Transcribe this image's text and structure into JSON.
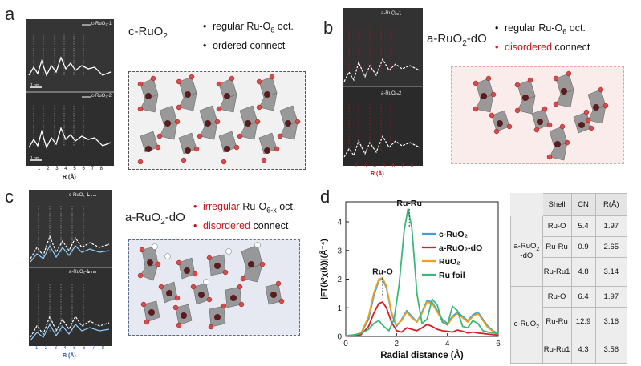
{
  "panels": {
    "a": {
      "label": "a",
      "title_main": "c-RuO",
      "title_sub": "2",
      "bullets": [
        {
          "text": "regular Ru-O",
          "sub": "6",
          "rest": " oct.",
          "highlight": false
        },
        {
          "text": "ordered connect",
          "sub": "",
          "rest": "",
          "highlight": false
        }
      ],
      "tem_legend_top": "c-RuO₂-1",
      "tem_legend_bottom": "c-RuO₂-2",
      "x_ticks": [
        "1",
        "2",
        "3",
        "4",
        "5",
        "6",
        "7",
        "8"
      ],
      "x_label": "R (Å)",
      "scale_text": "1 nm",
      "colors": {
        "tem_bg": "#2f2f2f",
        "trace": "#ffffff",
        "box_border": "#555555",
        "box_bg": "#f1f1f1"
      }
    },
    "b": {
      "label": "b",
      "title_main": "a-RuO",
      "title_sub": "2",
      "title_rest": "-dO",
      "bullets": [
        {
          "text": "regular Ru-O",
          "sub": "6",
          "rest": " oct.",
          "highlight": false
        },
        {
          "text": "disordered",
          "sub": "",
          "rest": " connect",
          "highlight": true
        }
      ],
      "tem_legend_top": "a-RuO₂-1",
      "tem_legend_bottom": "a-RuO₂-2",
      "x_ticks": [
        "1",
        "2",
        "3",
        "4",
        "5",
        "6",
        "7",
        "8"
      ],
      "x_label": "R (Å)",
      "colors": {
        "tem_bg": "#2a2a2a",
        "trace": "#ffffff",
        "markers": "#c0161c",
        "box_border": "#e5a3a7",
        "box_bg": "#fbecec"
      }
    },
    "c": {
      "label": "c",
      "title_main": "a-RuO",
      "title_sub": "2",
      "title_rest": "-dO",
      "bullets": [
        {
          "text": "irregular",
          "sub": "",
          "rest": " Ru-O",
          "rest_sub": "6-x",
          "rest2": " oct.",
          "highlight": true
        },
        {
          "text": "disordered",
          "sub": "",
          "rest": " connect",
          "highlight": true
        }
      ],
      "tem_legend_top": "c-RuO₂-1",
      "tem_legend_bottom": "a-RuO₂-1",
      "x_ticks": [
        "1",
        "2",
        "3",
        "4",
        "5",
        "6",
        "7",
        "8"
      ],
      "x_label": "R (Å)",
      "colors": {
        "tem_bg": "#2f2f2f",
        "trace": "#ffffff",
        "trace2": "#8fd0ff",
        "box_border": "#5a6a8a",
        "box_bg": "#e6e9f2"
      }
    },
    "d": {
      "label": "d",
      "peak_labels": [
        "Ru-O",
        "Ru-Ru"
      ]
    }
  },
  "table": {
    "headers": [
      "Shell",
      "CN",
      "R(Å)"
    ],
    "groups": [
      {
        "sample": "a-RuO",
        "sample_sub": "2",
        "sample_rest": "-dO",
        "rows": [
          {
            "shell": "Ru-O",
            "cn": "5.4",
            "r": "1.97"
          },
          {
            "shell": "Ru-Ru",
            "cn": "0.9",
            "r": "2.65"
          },
          {
            "shell": "Ru-Ru1",
            "cn": "4.8",
            "r": "3.14"
          }
        ]
      },
      {
        "sample": "c-RuO",
        "sample_sub": "2",
        "sample_rest": "",
        "rows": [
          {
            "shell": "Ru-O",
            "cn": "6.4",
            "r": "1.97"
          },
          {
            "shell": "Ru-Ru",
            "cn": "12.9",
            "r": "3.16"
          },
          {
            "shell": "Ru-Ru1",
            "cn": "4.3",
            "r": "3.56"
          }
        ]
      }
    ]
  },
  "chart_data": {
    "type": "line",
    "title": "",
    "xlabel": "Radial distance (Å)",
    "ylabel": "|FT(k²χ(k))|(Å⁻⁴)",
    "xlim": [
      0,
      6
    ],
    "ylim": [
      0,
      4.7
    ],
    "x_ticks": [
      0,
      2,
      4,
      6
    ],
    "y_ticks": [
      0,
      1,
      2,
      3,
      4
    ],
    "legend_position": "top-right",
    "annotations": [
      {
        "text": "Ru-O",
        "x": 1.45,
        "y": 2.05
      },
      {
        "text": "Ru-Ru",
        "x": 2.5,
        "y": 4.45
      }
    ],
    "series": [
      {
        "name": "c-RuO₂",
        "color": "#3aa0d8",
        "x": [
          0,
          0.3,
          0.6,
          0.9,
          1.1,
          1.3,
          1.45,
          1.6,
          1.8,
          2.0,
          2.2,
          2.4,
          2.6,
          2.8,
          3.0,
          3.2,
          3.4,
          3.6,
          3.8,
          4.0,
          4.2,
          4.4,
          4.6,
          4.8,
          5.0,
          5.2,
          5.4,
          5.6,
          5.8,
          6.0
        ],
        "y": [
          0.02,
          0.05,
          0.1,
          0.6,
          1.4,
          1.95,
          2.0,
          1.7,
          0.8,
          0.35,
          0.6,
          0.9,
          0.7,
          0.5,
          0.85,
          1.25,
          1.2,
          0.9,
          0.6,
          0.45,
          0.7,
          0.85,
          0.7,
          0.55,
          0.75,
          0.85,
          0.6,
          0.35,
          0.2,
          0.1
        ]
      },
      {
        "name": "a-RuO₂-dO",
        "color": "#d81e25",
        "x": [
          0,
          0.3,
          0.6,
          0.9,
          1.1,
          1.3,
          1.45,
          1.6,
          1.8,
          2.0,
          2.2,
          2.4,
          2.6,
          2.8,
          3.0,
          3.2,
          3.4,
          3.6,
          3.8,
          4.0,
          4.2,
          4.4,
          4.6,
          4.8,
          5.0,
          5.2,
          5.4,
          5.6,
          5.8,
          6.0
        ],
        "y": [
          0.01,
          0.03,
          0.06,
          0.35,
          0.8,
          1.15,
          1.2,
          1.0,
          0.5,
          0.2,
          0.15,
          0.3,
          0.25,
          0.2,
          0.3,
          0.42,
          0.35,
          0.25,
          0.2,
          0.18,
          0.15,
          0.22,
          0.18,
          0.12,
          0.15,
          0.12,
          0.1,
          0.08,
          0.06,
          0.05
        ]
      },
      {
        "name": "RuO₂",
        "color": "#f0a020",
        "x": [
          0,
          0.3,
          0.6,
          0.9,
          1.1,
          1.3,
          1.45,
          1.6,
          1.8,
          2.0,
          2.2,
          2.4,
          2.6,
          2.8,
          3.0,
          3.2,
          3.4,
          3.6,
          3.8,
          4.0,
          4.2,
          4.4,
          4.6,
          4.8,
          5.0,
          5.2,
          5.4,
          5.6,
          5.8,
          6.0
        ],
        "y": [
          0.02,
          0.05,
          0.12,
          0.7,
          1.5,
          2.0,
          2.05,
          1.75,
          0.85,
          0.4,
          0.55,
          0.85,
          0.65,
          0.5,
          0.8,
          1.2,
          1.15,
          0.85,
          0.55,
          0.4,
          0.65,
          0.8,
          0.65,
          0.5,
          0.7,
          0.8,
          0.55,
          0.3,
          0.18,
          0.08
        ]
      },
      {
        "name": "Ru foil",
        "color": "#3cb878",
        "x": [
          0,
          0.3,
          0.6,
          0.9,
          1.1,
          1.3,
          1.5,
          1.7,
          1.9,
          2.1,
          2.3,
          2.45,
          2.6,
          2.8,
          3.0,
          3.2,
          3.4,
          3.6,
          3.8,
          4.0,
          4.2,
          4.4,
          4.6,
          4.8,
          5.0,
          5.2,
          5.4,
          5.6,
          5.8,
          6.0
        ],
        "y": [
          0.02,
          0.05,
          0.1,
          0.25,
          0.45,
          0.55,
          0.35,
          0.2,
          0.6,
          1.8,
          3.7,
          4.45,
          3.8,
          1.5,
          0.45,
          0.6,
          1.3,
          1.1,
          0.5,
          0.4,
          1.05,
          0.9,
          0.35,
          0.3,
          0.55,
          0.45,
          0.2,
          0.15,
          0.12,
          0.1
        ]
      }
    ]
  }
}
